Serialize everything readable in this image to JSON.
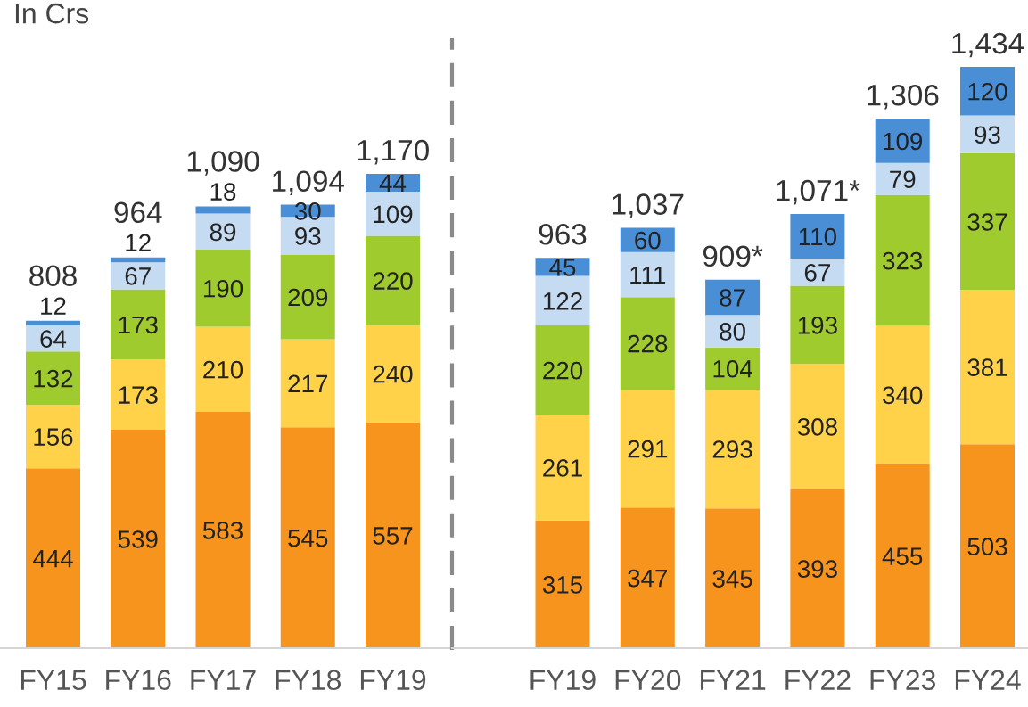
{
  "chart_data": [
    {
      "type": "bar",
      "stacked": true,
      "ylabel": "In Crs",
      "categories": [
        "FY15",
        "FY16",
        "FY17",
        "FY18",
        "FY19"
      ],
      "series": [
        {
          "color": "#f7941d",
          "values": [
            444,
            539,
            583,
            545,
            557
          ]
        },
        {
          "color": "#ffd24a",
          "values": [
            156,
            173,
            210,
            217,
            240
          ]
        },
        {
          "color": "#a0cb2e",
          "values": [
            132,
            173,
            190,
            209,
            220
          ]
        },
        {
          "color": "#c4dbf2",
          "values": [
            64,
            67,
            89,
            93,
            109
          ]
        },
        {
          "color": "#4a8fd6",
          "values": [
            12,
            12,
            18,
            30,
            44
          ]
        }
      ],
      "data_labels": true,
      "totals": [
        "808",
        "964",
        "1,090",
        "1,094",
        "1,170"
      ],
      "ylim": [
        0,
        1500
      ],
      "tick_labels": "x"
    },
    {
      "type": "bar",
      "stacked": true,
      "categories": [
        "FY19",
        "FY20",
        "FY21",
        "FY22",
        "FY23",
        "FY24"
      ],
      "series": [
        {
          "color": "#f7941d",
          "values": [
            315,
            347,
            345,
            393,
            455,
            503
          ]
        },
        {
          "color": "#ffd24a",
          "values": [
            261,
            291,
            293,
            308,
            340,
            381
          ]
        },
        {
          "color": "#a0cb2e",
          "values": [
            220,
            228,
            104,
            193,
            323,
            337
          ]
        },
        {
          "color": "#c4dbf2",
          "values": [
            122,
            111,
            80,
            67,
            79,
            93
          ]
        },
        {
          "color": "#4a8fd6",
          "values": [
            45,
            60,
            87,
            110,
            109,
            120
          ]
        }
      ],
      "data_labels": true,
      "totals": [
        "963",
        "1,037",
        "909*",
        "1,071*",
        "1,306",
        "1,434"
      ],
      "ylim": [
        0,
        1500
      ],
      "tick_labels": "x"
    }
  ]
}
